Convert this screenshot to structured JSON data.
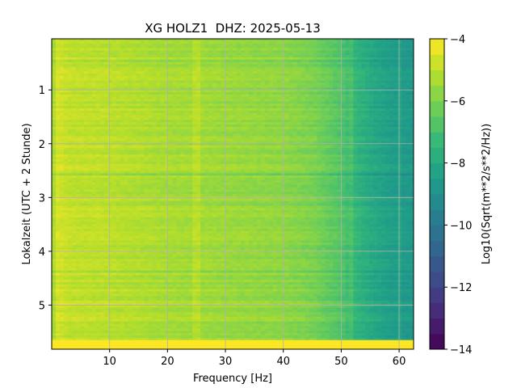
{
  "chart_data": {
    "type": "heatmap",
    "title": "XG HOLZ1  DHZ: 2025-05-13",
    "xlabel": "Frequency [Hz]",
    "ylabel": "Lokalzeit (UTC + 2 Stunde)",
    "colorbar_label": "Log10(Sqrt(m**2/s**2/Hz))",
    "colormap": "viridis",
    "xlim": [
      0,
      62.5
    ],
    "ylim": [
      5.82,
      0.05
    ],
    "y_inverted": true,
    "clim": [
      -14,
      -4
    ],
    "grid": true,
    "x_ticks": [
      10,
      20,
      30,
      40,
      50,
      60
    ],
    "x_tick_labels": [
      "10",
      "20",
      "30",
      "40",
      "50",
      "60"
    ],
    "y_ticks": [
      1,
      2,
      3,
      4,
      5
    ],
    "y_tick_labels": [
      "1",
      "2",
      "3",
      "4",
      "5"
    ],
    "colorbar_ticks": [
      -4,
      -6,
      -8,
      -10,
      -12,
      -14
    ],
    "colorbar_tick_labels": [
      "−4",
      "−6",
      "−8",
      "−10",
      "−12",
      "−14"
    ],
    "colorbar_levels": 20,
    "spectrum_profile": {
      "frequency_hz": [
        0,
        1,
        3,
        10,
        20,
        30,
        40,
        45,
        50,
        52,
        55,
        58,
        60,
        62.5
      ],
      "log10_psd": [
        -5.5,
        -4.6,
        -4.9,
        -5.0,
        -5.3,
        -5.5,
        -5.7,
        -6.0,
        -6.7,
        -7.3,
        -7.9,
        -8.3,
        -8.5,
        -8.6
      ]
    },
    "saturated_band": {
      "y_range": [
        5.65,
        5.82
      ],
      "log10_psd": -4.0
    },
    "vertical_lines_hz": [
      25,
      52,
      60
    ],
    "colors": {
      "grid": "#b0b0b0",
      "frame": "#000000"
    }
  }
}
